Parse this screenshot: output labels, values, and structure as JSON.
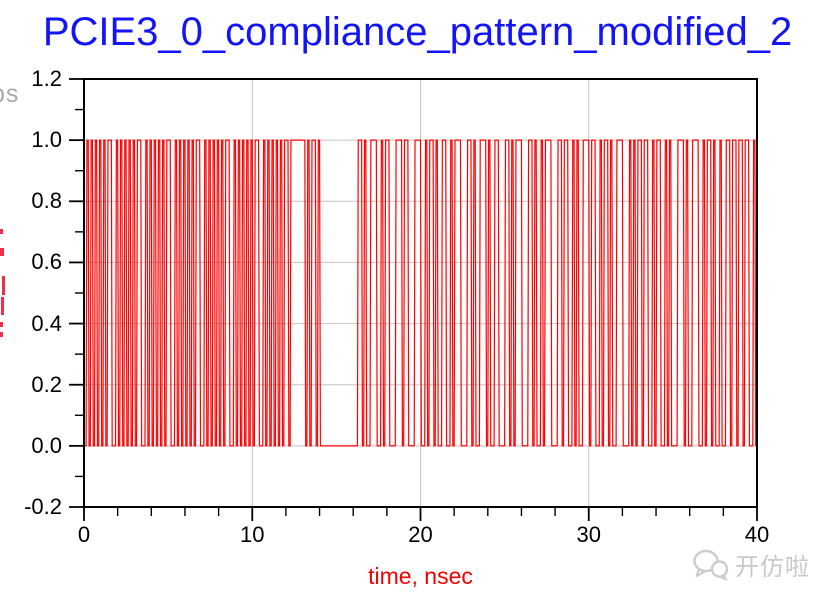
{
  "title": "PCIE3_0_compliance_pattern_modified_2",
  "clipped_left": {
    "top_text": "ps"
  },
  "watermark": {
    "text": "开仿啦"
  },
  "chart_data": {
    "type": "line",
    "subtype": "digital-NRZ-waveform",
    "title": "PCIE3_0_compliance_pattern_modified_2",
    "xlabel": "time, nsec",
    "ylabel": "",
    "xlim": [
      0,
      40
    ],
    "ylim": [
      -0.2,
      1.2
    ],
    "grid": {
      "x": [
        10,
        20,
        30
      ],
      "y": [
        0.0,
        0.2,
        0.4,
        0.6,
        0.8,
        1.0
      ]
    },
    "x_ticks": [
      {
        "v": 0,
        "label": "0"
      },
      {
        "v": 10,
        "label": "10"
      },
      {
        "v": 20,
        "label": "20"
      },
      {
        "v": 30,
        "label": "30"
      },
      {
        "v": 40,
        "label": "40"
      }
    ],
    "x_minor_ticks": [
      2,
      4,
      6,
      8,
      12,
      14,
      16,
      18,
      22,
      24,
      26,
      28,
      32,
      34,
      36,
      38
    ],
    "y_ticks": [
      {
        "v": 1.2,
        "label": "1.2"
      },
      {
        "v": 1.0,
        "label": "1.0"
      },
      {
        "v": 0.8,
        "label": "0.8"
      },
      {
        "v": 0.6,
        "label": "0.6"
      },
      {
        "v": 0.4,
        "label": "0.4"
      },
      {
        "v": 0.2,
        "label": "0.2"
      },
      {
        "v": 0.0,
        "label": "0.0"
      },
      {
        "v": -0.2,
        "label": "-0.2"
      }
    ],
    "y_minor_ticks": [
      -0.1,
      0.1,
      0.3,
      0.5,
      0.7,
      0.9,
      1.1
    ],
    "logic_low": 0.0,
    "logic_high": 1.0,
    "unit_interval_ns": 0.125,
    "pattern": [
      {
        "repeat": 7,
        "bits": "01010101010110"
      },
      {
        "repeat": 1,
        "bits": "1111111"
      },
      {
        "repeat": 1,
        "bits": "0101101"
      },
      {
        "repeat": 18,
        "bits": "0"
      },
      {
        "repeat": 1,
        "bits": "1101001110"
      },
      {
        "repeat": 1,
        "bits": "0101100011"
      },
      {
        "repeat": 1,
        "bits": "1011000111"
      },
      {
        "repeat": 1,
        "bits": "0010110100"
      },
      {
        "repeat": 1,
        "bits": "1100101110"
      },
      {
        "repeat": 1,
        "bits": "0011010011"
      },
      {
        "repeat": 1,
        "bits": "1010011000"
      },
      {
        "repeat": 1,
        "bits": "1101011100"
      },
      {
        "repeat": 1,
        "bits": "0110100101"
      },
      {
        "repeat": 1,
        "bits": "1100011011"
      },
      {
        "repeat": 1,
        "bits": "0010100111"
      },
      {
        "repeat": 1,
        "bits": "0110010110"
      },
      {
        "repeat": 1,
        "bits": "1001110001"
      },
      {
        "repeat": 1,
        "bits": "0101101100"
      },
      {
        "repeat": 1,
        "bits": "1011001010"
      },
      {
        "repeat": 1,
        "bits": "0011101001"
      },
      {
        "repeat": 1,
        "bits": "1100101101"
      },
      {
        "repeat": 1,
        "bits": "0010011011"
      },
      {
        "repeat": 1,
        "bits": "0110110010"
      }
    ],
    "colors": {
      "trace": "#ff0000",
      "grid": "#c4c4c4",
      "axis": "#000000",
      "title": "#1414fa",
      "xlabel": "#f20000"
    },
    "legend": "none"
  }
}
